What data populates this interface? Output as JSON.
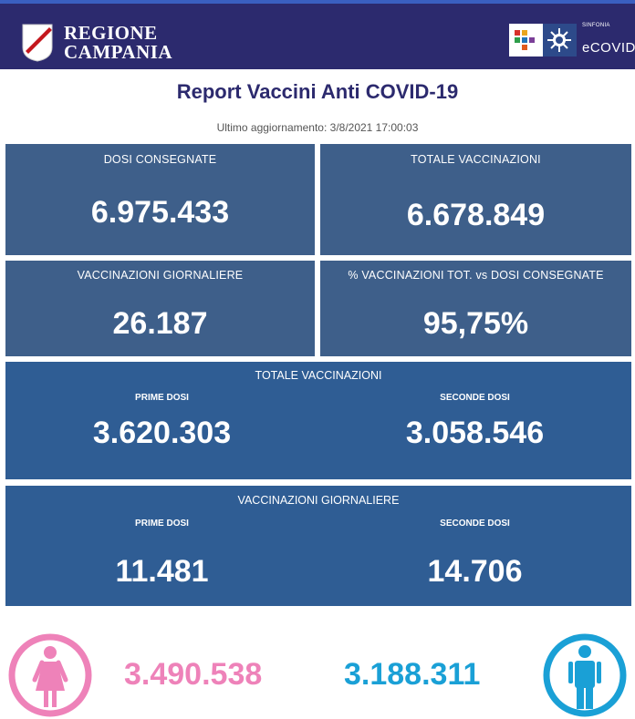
{
  "header": {
    "region_line1": "REGIONE",
    "region_line2": "CAMPANIA",
    "brand_small": "SINFONIA",
    "brand_name": "eCOVID"
  },
  "report": {
    "title": "Report Vaccini Anti COVID-19",
    "updated": "Ultimo aggiornamento: 3/8/2021  17:00:03"
  },
  "stats": {
    "dosi_consegnate": {
      "label": "DOSI  CONSEGNATE",
      "value": "6.975.433"
    },
    "totale_vaccinazioni": {
      "label": "TOTALE VACCINAZIONI",
      "value": "6.678.849"
    },
    "vaccinazioni_giornaliere": {
      "label": "VACCINAZIONI GIORNALIERE",
      "value": "26.187"
    },
    "percentuale": {
      "label": "% VACCINAZIONI TOT. vs DOSI CONSEGNATE",
      "value": "95,75%"
    }
  },
  "totale_panel": {
    "label": "TOTALE VACCINAZIONI",
    "prime_label": "PRIME DOSI",
    "prime_value": "3.620.303",
    "seconde_label": "SECONDE DOSI",
    "seconde_value": "3.058.546"
  },
  "giornaliere_panel": {
    "label": "VACCINAZIONI GIORNALIERE",
    "prime_label": "PRIME DOSI",
    "prime_value": "11.481",
    "seconde_label": "SECONDE DOSI",
    "seconde_value": "14.706"
  },
  "gender": {
    "female": {
      "icon": "female-person-icon",
      "value": "3.490.538",
      "color": "#ee82b9"
    },
    "male": {
      "icon": "male-person-icon",
      "value": "3.188.311",
      "color": "#1aa0d6"
    }
  }
}
